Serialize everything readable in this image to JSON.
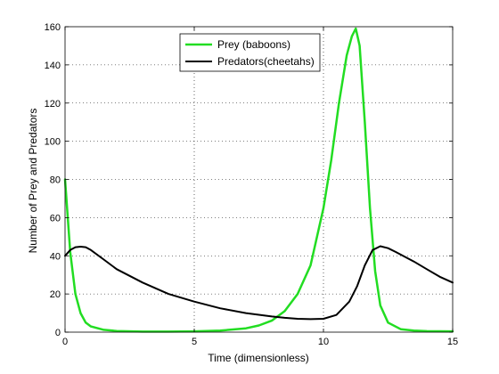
{
  "chart_data": {
    "type": "line",
    "xlabel": "Time (dimensionless)",
    "ylabel": "Number of Prey and Predators",
    "xlim": [
      0,
      15
    ],
    "ylim": [
      0,
      160
    ],
    "xticks": [
      0,
      5,
      10,
      15
    ],
    "yticks": [
      0,
      20,
      40,
      60,
      80,
      100,
      120,
      140,
      160
    ],
    "grid": true,
    "legend_position": "top-center",
    "series": [
      {
        "name": "Prey (baboons)",
        "color": "#22dd22",
        "x": [
          0,
          0.2,
          0.4,
          0.6,
          0.8,
          1.0,
          1.5,
          2.0,
          3.0,
          4.0,
          5.0,
          6.0,
          7.0,
          7.5,
          8.0,
          8.5,
          9.0,
          9.5,
          10.0,
          10.3,
          10.6,
          10.9,
          11.1,
          11.25,
          11.4,
          11.6,
          11.8,
          12.0,
          12.2,
          12.5,
          13.0,
          13.5,
          14.0,
          15.0
        ],
        "y": [
          80,
          42,
          20,
          10,
          5,
          3,
          1.2,
          0.6,
          0.3,
          0.3,
          0.4,
          0.8,
          2,
          3.5,
          6,
          11,
          20,
          35,
          65,
          90,
          120,
          145,
          155,
          159,
          150,
          110,
          65,
          32,
          14,
          5,
          1.5,
          0.8,
          0.5,
          0.4
        ]
      },
      {
        "name": "Predators(cheetahs)",
        "color": "#000000",
        "x": [
          0,
          0.2,
          0.4,
          0.6,
          0.8,
          1.0,
          1.5,
          2.0,
          3.0,
          4.0,
          5.0,
          6.0,
          7.0,
          8.0,
          8.5,
          9.0,
          9.5,
          10.0,
          10.5,
          11.0,
          11.3,
          11.6,
          11.9,
          12.2,
          12.5,
          12.8,
          13.5,
          14.0,
          14.5,
          15.0
        ],
        "y": [
          40,
          43,
          44.5,
          44.8,
          44.5,
          43,
          38,
          33,
          26,
          20,
          16,
          12.5,
          10,
          8.2,
          7.5,
          7,
          6.8,
          7,
          9,
          16,
          24,
          35,
          43,
          45,
          44,
          42,
          37,
          33,
          29,
          26
        ]
      }
    ]
  }
}
